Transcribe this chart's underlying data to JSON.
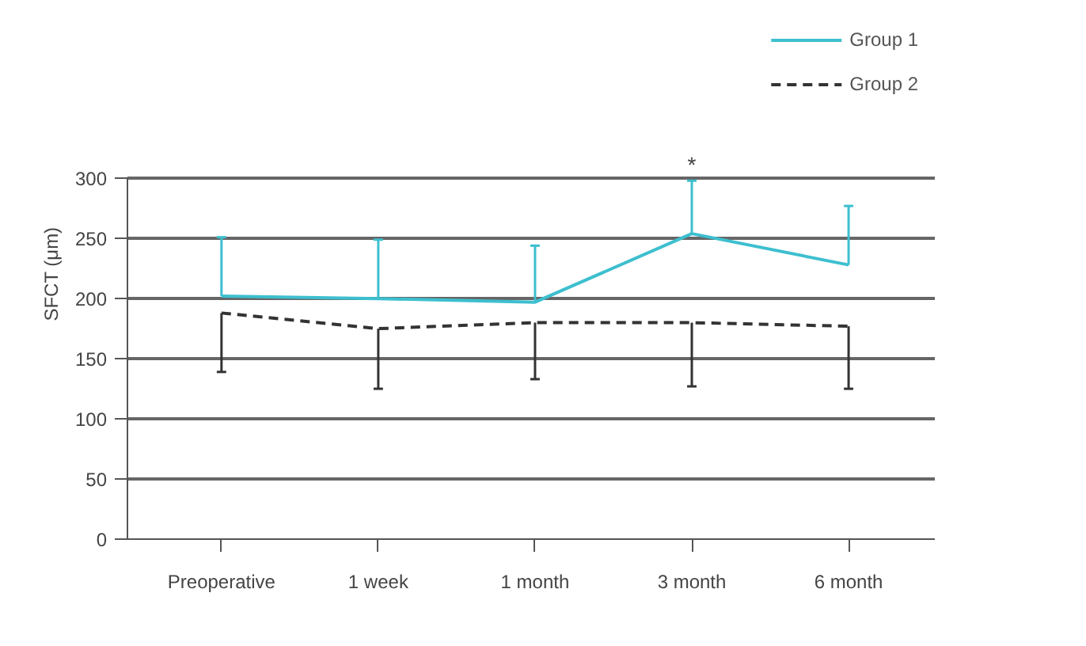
{
  "chart_data": {
    "type": "line",
    "ylabel": "SFCT (μm)",
    "categories": [
      "Preoperative",
      "1 week",
      "1 month",
      "3 month",
      "6 month"
    ],
    "series": [
      {
        "name": "Group 1",
        "color": "#3dbfcf",
        "line_style": "solid",
        "values": [
          202,
          200,
          197,
          254,
          228
        ],
        "errors": [
          [
            202,
            251
          ],
          [
            200,
            249
          ],
          [
            197,
            244
          ],
          [
            254,
            298
          ],
          [
            228,
            277
          ]
        ]
      },
      {
        "name": "Group 2",
        "color": "#333333",
        "line_style": "dashed",
        "values": [
          188,
          175,
          180,
          180,
          177
        ],
        "errors": [
          [
            139,
            188
          ],
          [
            125,
            175
          ],
          [
            133,
            180
          ],
          [
            127,
            180
          ],
          [
            125,
            177
          ]
        ]
      }
    ],
    "ylim": [
      0,
      300
    ],
    "yticks": [
      0,
      50,
      100,
      150,
      200,
      250,
      300
    ],
    "grid": "y",
    "legend": "top right",
    "marker": "none",
    "annotations": [
      {
        "text": "*",
        "x": "3 month",
        "y": 298
      }
    ]
  }
}
